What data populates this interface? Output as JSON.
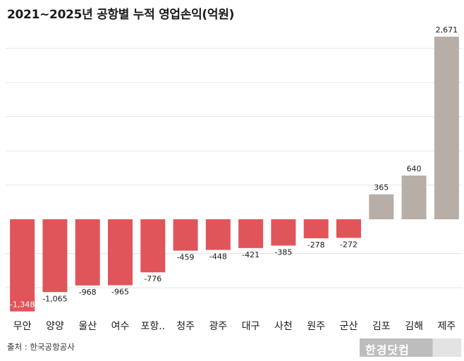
{
  "title": "2021~2025년 공항별 누적 영업손익(억원)",
  "source": "출처 : 한국공항공사",
  "logo_text": "한경닷컴",
  "colors": {
    "negative": "#e0555a",
    "positive": "#b6aea7",
    "grid": "#e6e6e6",
    "label": "#1a1a1a",
    "inner_label": "#ffffff"
  },
  "chart_data": {
    "type": "bar",
    "title": "2021~2025년 공항별 누적 영업손익(억원)",
    "categories": [
      "무안",
      "양양",
      "울산",
      "여수",
      "포항..",
      "청주",
      "광주",
      "대구",
      "사천",
      "원주",
      "군산",
      "김포",
      "김해",
      "제주"
    ],
    "values": [
      -1348,
      -1065,
      -968,
      -965,
      -776,
      -459,
      -448,
      -421,
      -385,
      -278,
      -272,
      365,
      640,
      2671
    ],
    "value_labels": [
      "-1,348",
      "-1,065",
      "-968",
      "-965",
      "-776",
      "-459",
      "-448",
      "-421",
      "-385",
      "-278",
      "-272",
      "365",
      "640",
      "2,671"
    ],
    "ylim": [
      -1400,
      2800
    ],
    "grid": true,
    "xlabel": "",
    "ylabel": ""
  }
}
